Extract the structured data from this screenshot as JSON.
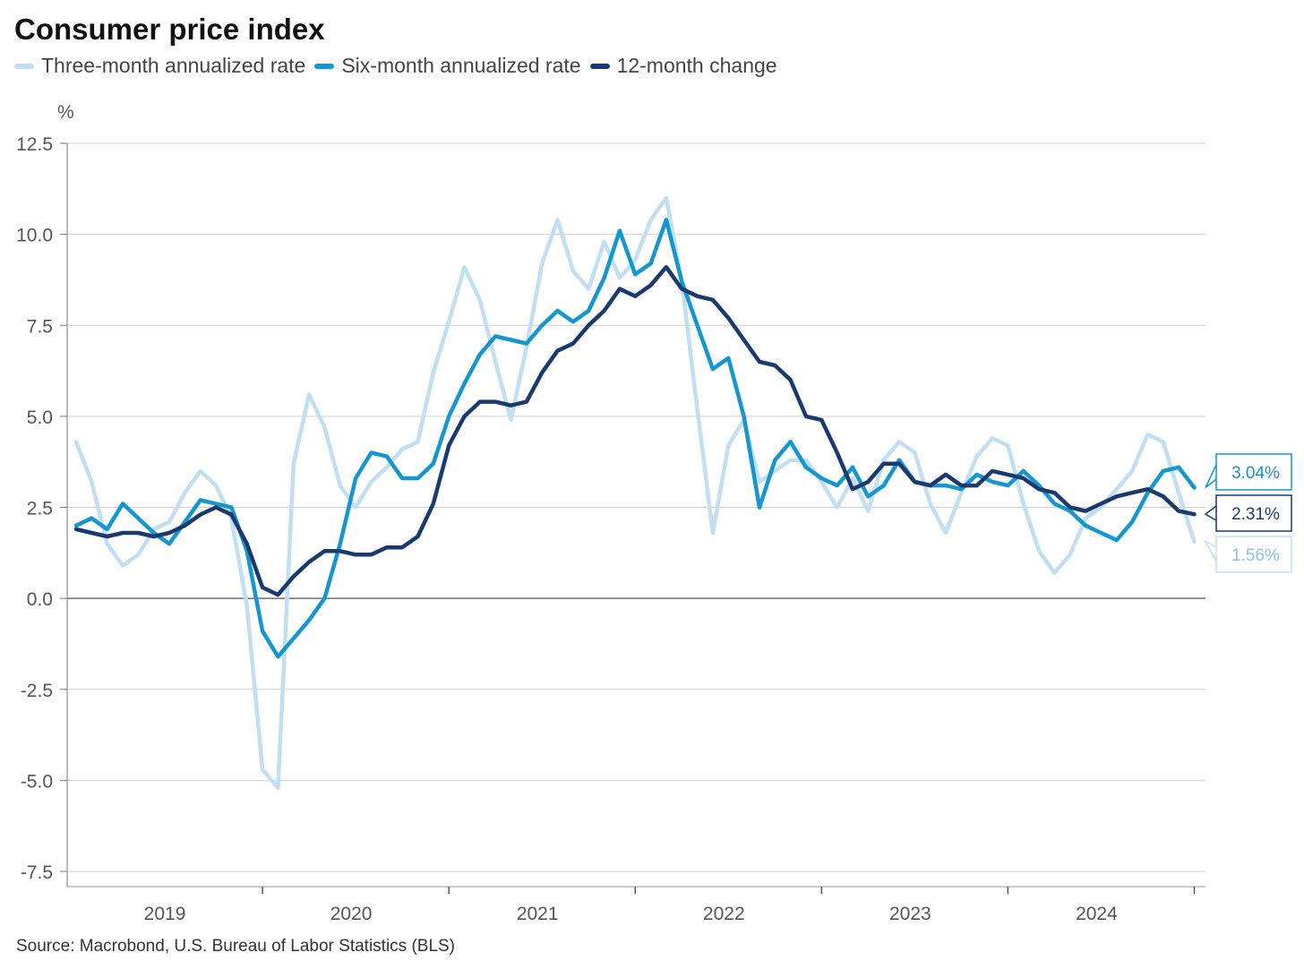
{
  "title": "Consumer price index",
  "source": "Source: Macrobond, U.S. Bureau of Labor Statistics (BLS)",
  "colors": {
    "three_month": "#c2dff2",
    "six_month": "#1596cf",
    "twelve_month": "#1a3a6d",
    "grid": "#cfcfcf",
    "zero": "#6f6f6f"
  },
  "chart_data": {
    "type": "line",
    "y_unit_label": "%",
    "ylim": [
      -7.5,
      12.5
    ],
    "y_ticks": [
      "12.5",
      "10.0",
      "7.5",
      "5.0",
      "2.5",
      "0.0",
      "-2.5",
      "-5.0",
      "-7.5"
    ],
    "x_ticks": [
      "2019",
      "2020",
      "2021",
      "2022",
      "2023",
      "2024"
    ],
    "x_start": "2018-12",
    "x_end": "2024-11",
    "grid": true,
    "legend_position": "top-left",
    "series": [
      {
        "key": "three_month",
        "name": "Three-month annualized rate",
        "end_label": "1.56%",
        "values": [
          4.3,
          3.2,
          1.5,
          0.9,
          1.2,
          1.9,
          2.1,
          2.9,
          3.5,
          3.1,
          2.2,
          -0.2,
          -4.7,
          -5.2,
          3.7,
          5.6,
          4.7,
          3.1,
          2.5,
          3.2,
          3.6,
          4.1,
          4.3,
          6.2,
          7.6,
          9.1,
          8.2,
          6.5,
          4.9,
          6.9,
          9.2,
          10.4,
          9.0,
          8.5,
          9.8,
          8.8,
          9.3,
          10.4,
          11.0,
          8.7,
          5.2,
          1.8,
          4.2,
          4.9,
          3.2,
          3.5,
          3.8,
          3.8,
          3.2,
          2.5,
          3.3,
          2.4,
          3.8,
          4.3,
          4.0,
          2.6,
          1.8,
          2.9,
          3.9,
          4.4,
          4.2,
          2.6,
          1.3,
          0.7,
          1.2,
          2.2,
          2.5,
          3.0,
          3.5,
          4.5,
          4.3,
          2.9,
          1.56
        ]
      },
      {
        "key": "six_month",
        "name": "Six-month annualized rate",
        "end_label": "3.04%",
        "values": [
          2.0,
          2.2,
          1.9,
          2.6,
          2.2,
          1.8,
          1.5,
          2.1,
          2.7,
          2.6,
          2.5,
          1.3,
          -0.9,
          -1.6,
          -1.1,
          -0.6,
          0.0,
          1.5,
          3.3,
          4.0,
          3.9,
          3.3,
          3.3,
          3.7,
          5.0,
          5.9,
          6.7,
          7.2,
          7.1,
          7.0,
          7.5,
          7.9,
          7.6,
          7.9,
          8.8,
          10.1,
          8.9,
          9.2,
          10.4,
          8.7,
          7.5,
          6.3,
          6.6,
          5.0,
          2.5,
          3.8,
          4.3,
          3.6,
          3.3,
          3.1,
          3.6,
          2.8,
          3.1,
          3.8,
          3.2,
          3.1,
          3.1,
          3.0,
          3.4,
          3.2,
          3.1,
          3.5,
          3.1,
          2.6,
          2.4,
          2.0,
          1.8,
          1.6,
          2.1,
          2.9,
          3.5,
          3.6,
          3.04
        ]
      },
      {
        "key": "twelve_month",
        "name": "12-month change",
        "end_label": "2.31%",
        "values": [
          1.9,
          1.8,
          1.7,
          1.8,
          1.8,
          1.7,
          1.8,
          2.0,
          2.3,
          2.5,
          2.3,
          1.5,
          0.3,
          0.1,
          0.6,
          1.0,
          1.3,
          1.3,
          1.2,
          1.2,
          1.4,
          1.4,
          1.7,
          2.6,
          4.2,
          5.0,
          5.4,
          5.4,
          5.3,
          5.4,
          6.2,
          6.8,
          7.0,
          7.5,
          7.9,
          8.5,
          8.3,
          8.6,
          9.1,
          8.5,
          8.3,
          8.2,
          7.7,
          7.1,
          6.5,
          6.4,
          6.0,
          5.0,
          4.9,
          4.0,
          3.0,
          3.2,
          3.7,
          3.7,
          3.2,
          3.1,
          3.4,
          3.1,
          3.1,
          3.5,
          3.4,
          3.3,
          3.0,
          2.9,
          2.5,
          2.4,
          2.6,
          2.8,
          2.9,
          3.0,
          2.8,
          2.4,
          2.31
        ]
      }
    ]
  }
}
